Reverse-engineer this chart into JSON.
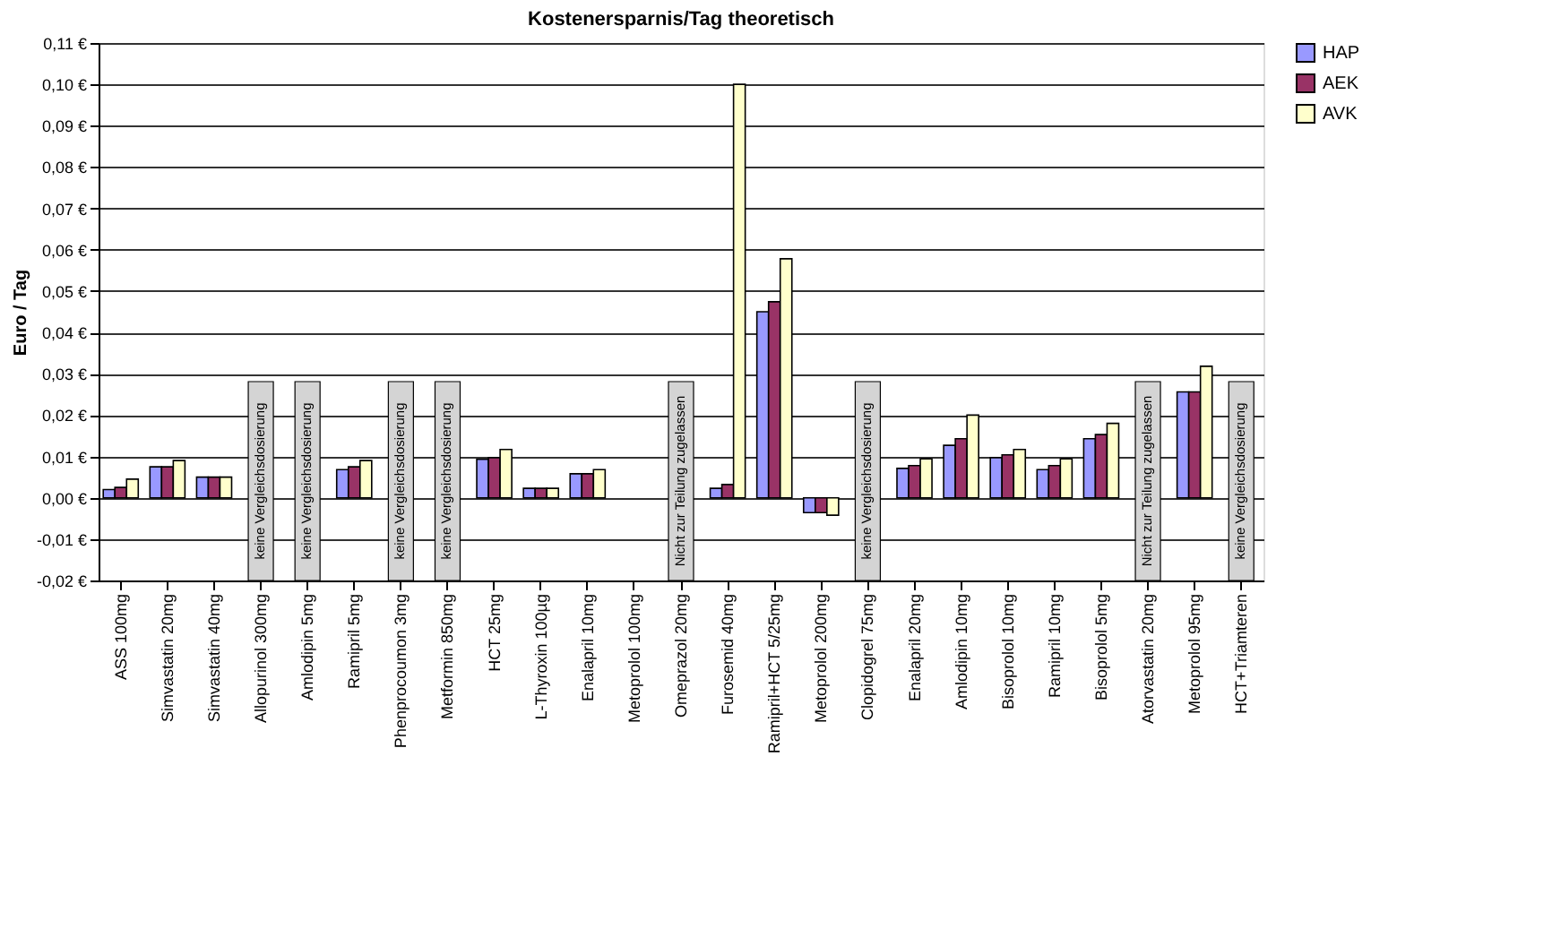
{
  "chart_data": {
    "type": "bar",
    "title": "Kostenersparnis/Tag theoretisch",
    "ylabel": "Euro / Tag",
    "categories": [
      "ASS 100mg",
      "Simvastatin 20mg",
      "Simvastatin 40mg",
      "Allopurinol 300mg",
      "Amlodipin 5mg",
      "Ramipril 5mg",
      "Phenprocoumon 3mg",
      "Metformin 850mg",
      "HCT 25mg",
      "L-Thyroxin 100µg",
      "Enalapril 10mg",
      "Metoprolol 100mg",
      "Omeprazol 20mg",
      "Furosemid 40mg",
      "Ramipril+HCT 5/25mg",
      "Metoprolol 200mg",
      "Clopidogrel 75mg",
      "Enalapril 20mg",
      "Amlodipin 10mg",
      "Bisoprolol 10mg",
      "Ramipril 10mg",
      "Bisoprolol 5mg",
      "Atorvastatin 20mg",
      "Metoprolol 95mg",
      "HCT+Triamteren"
    ],
    "series": [
      {
        "name": "HAP",
        "color": "#9999ff",
        "values": [
          0.002,
          0.0075,
          0.005,
          null,
          null,
          0.0068,
          null,
          null,
          0.0093,
          0.0023,
          0.0058,
          null,
          null,
          0.0023,
          0.045,
          -0.0036,
          null,
          0.0071,
          0.0127,
          0.0097,
          0.0068,
          0.0143,
          null,
          0.0256,
          null
        ]
      },
      {
        "name": "AEK",
        "color": "#993366",
        "values": [
          0.0025,
          0.0075,
          0.005,
          null,
          null,
          0.0075,
          null,
          null,
          0.0097,
          0.0023,
          0.0058,
          null,
          null,
          0.0032,
          0.0474,
          -0.0036,
          null,
          0.0078,
          0.0143,
          0.0104,
          0.0078,
          0.0153,
          null,
          0.0256,
          null
        ]
      },
      {
        "name": "AVK",
        "color": "#ffffcc",
        "values": [
          0.0045,
          0.009,
          0.005,
          null,
          null,
          0.009,
          null,
          null,
          0.0117,
          0.0023,
          0.0068,
          null,
          null,
          0.1,
          0.0578,
          -0.0042,
          null,
          0.0094,
          0.02,
          0.0117,
          0.0094,
          0.018,
          null,
          0.0318,
          null
        ]
      }
    ],
    "bands": [
      {
        "axis": "x",
        "from": "Allopurinol 300mg",
        "to": "Allopurinol 300mg",
        "label": "keine Vergleichsdosierung",
        "color": "#d4d4d4"
      },
      {
        "axis": "x",
        "from": "Amlodipin 5mg",
        "to": "Amlodipin 5mg",
        "label": "keine Vergleichsdosierung",
        "color": "#d4d4d4"
      },
      {
        "axis": "x",
        "from": "Phenprocoumon 3mg",
        "to": "Phenprocoumon 3mg",
        "label": "keine Vergleichsdosierung",
        "color": "#d4d4d4"
      },
      {
        "axis": "x",
        "from": "Metformin 850mg",
        "to": "Metformin 850mg",
        "label": "keine Vergleichsdosierung",
        "color": "#d4d4d4"
      },
      {
        "axis": "x",
        "from": "Omeprazol 20mg",
        "to": "Omeprazol 20mg",
        "label": "Nicht zur Teilung zugelassen",
        "color": "#d4d4d4"
      },
      {
        "axis": "x",
        "from": "Clopidogrel 75mg",
        "to": "Clopidogrel 75mg",
        "label": "keine Vergleichsdosierung",
        "color": "#d4d4d4"
      },
      {
        "axis": "x",
        "from": "Atorvastatin 20mg",
        "to": "Atorvastatin 20mg",
        "label": "Nicht zur Teilung zugelassen",
        "color": "#d4d4d4"
      },
      {
        "axis": "x",
        "from": "HCT+Triamteren",
        "to": "HCT+Triamteren",
        "label": "keine Vergleichsdosierung",
        "color": "#d4d4d4"
      }
    ],
    "ylim": [
      -0.02,
      0.11
    ],
    "yticks": [
      {
        "value": -0.02,
        "label": "-0,02 €"
      },
      {
        "value": -0.01,
        "label": "-0,01 €"
      },
      {
        "value": 0,
        "label": "0,00 €"
      },
      {
        "value": 0.01,
        "label": "0,01 €"
      },
      {
        "value": 0.02,
        "label": "0,02 €"
      },
      {
        "value": 0.03,
        "label": "0,03 €"
      },
      {
        "value": 0.04,
        "label": "0,04 €"
      },
      {
        "value": 0.05,
        "label": "0,05 €"
      },
      {
        "value": 0.06,
        "label": "0,06 €"
      },
      {
        "value": 0.07,
        "label": "0,07 €"
      },
      {
        "value": 0.08,
        "label": "0,08 €"
      },
      {
        "value": 0.09,
        "label": "0,09 €"
      },
      {
        "value": 0.1,
        "label": "0,10 €"
      },
      {
        "value": 0.11,
        "label": "0,11 €"
      }
    ],
    "grid": "y",
    "legend": "right"
  }
}
